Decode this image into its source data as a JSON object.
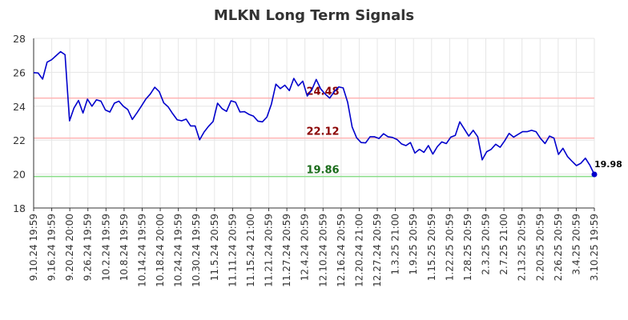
{
  "chart_data": {
    "type": "line",
    "title": "MLKN Long Term Signals",
    "xlabel": "",
    "ylabel": "",
    "ylim": [
      18,
      28
    ],
    "yticks": [
      18,
      20,
      22,
      24,
      26,
      28
    ],
    "grid": true,
    "x_tick_labels": [
      "9.10.24 19:59",
      "9.16.24 19:59",
      "9.20.24 20:00",
      "9.26.24 19:59",
      "10.2.24 19:59",
      "10.8.24 19:59",
      "10.14.24 19:59",
      "10.18.24 20:00",
      "10.24.24 19:59",
      "10.30.24 19:59",
      "11.5.24 20:59",
      "11.11.24 20:59",
      "11.15.24 21:00",
      "11.21.24 20:59",
      "11.27.24 20:59",
      "12.4.24 20:59",
      "12.10.24 20:59",
      "12.16.24 20:59",
      "12.20.24 21:00",
      "12.27.24 20:59",
      "1.3.25 21:00",
      "1.9.25 20:59",
      "1.15.25 20:59",
      "1.22.25 20:59",
      "1.28.25 20:59",
      "2.3.25 20:59",
      "2.7.25 21:00",
      "2.13.25 20:59",
      "2.20.25 20:59",
      "2.26.25 20:59",
      "3.4.25 20:59",
      "3.10.25 19:59"
    ],
    "series": [
      {
        "color": "#0000cc",
        "values": [
          25.98,
          25.96,
          25.6,
          26.6,
          26.74,
          26.98,
          27.22,
          27.04,
          23.14,
          23.9,
          24.34,
          23.6,
          24.42,
          24.0,
          24.38,
          24.3,
          23.78,
          23.66,
          24.18,
          24.3,
          24.0,
          23.8,
          23.22,
          23.6,
          24.0,
          24.42,
          24.72,
          25.12,
          24.86,
          24.2,
          23.96,
          23.56,
          23.2,
          23.14,
          23.24,
          22.84,
          22.84,
          22.02,
          22.48,
          22.82,
          23.1,
          24.18,
          23.86,
          23.7,
          24.32,
          24.24,
          23.66,
          23.68,
          23.52,
          23.42,
          23.12,
          23.08,
          23.36,
          24.12,
          25.3,
          25.04,
          25.24,
          24.92,
          25.64,
          25.2,
          25.48,
          24.6,
          24.96,
          25.58,
          25.02,
          24.72,
          24.48,
          24.86,
          25.14,
          25.08,
          24.24,
          22.78,
          22.14,
          21.86,
          21.84,
          22.2,
          22.2,
          22.1,
          22.38,
          22.2,
          22.16,
          22.04,
          21.78,
          21.68,
          21.86,
          21.24,
          21.46,
          21.28,
          21.68,
          21.18,
          21.62,
          21.9,
          21.8,
          22.18,
          22.28,
          23.08,
          22.66,
          22.24,
          22.58,
          22.2,
          20.84,
          21.32,
          21.46,
          21.76,
          21.58,
          21.96,
          22.4,
          22.18,
          22.34,
          22.5,
          22.5,
          22.58,
          22.5,
          22.1,
          21.8,
          22.24,
          22.12,
          21.16,
          21.52,
          21.04,
          20.76,
          20.5,
          20.64,
          20.94,
          20.52,
          19.98
        ]
      }
    ],
    "levels": [
      {
        "value": 24.48,
        "label": "24.48",
        "line_color": "#ffb3b3",
        "text_color": "#8b0000"
      },
      {
        "value": 22.12,
        "label": "22.12",
        "line_color": "#ffb3b3",
        "text_color": "#8b0000"
      },
      {
        "value": 19.86,
        "label": "19.86",
        "line_color": "#88dd88",
        "text_color": "#1a6b1a"
      }
    ],
    "last_value": 19.98,
    "last_value_label": "19.98"
  }
}
